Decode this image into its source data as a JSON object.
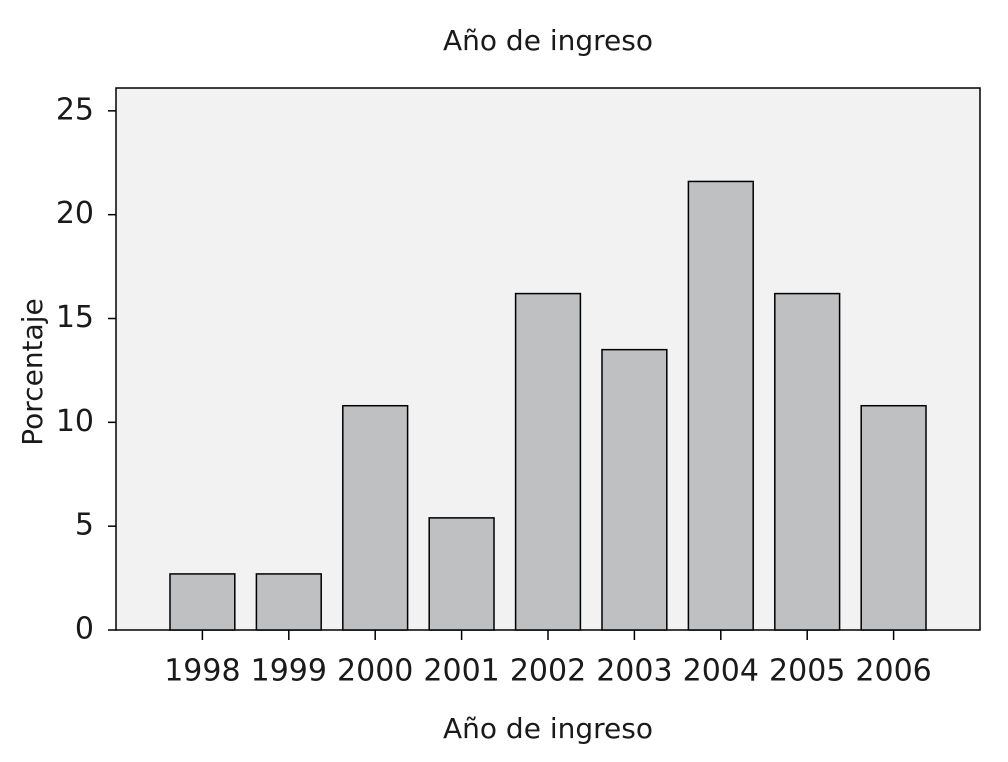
{
  "chart_data": {
    "type": "bar",
    "title": "Año de ingreso",
    "x_label": "Año de ingreso",
    "y_label": "Porcentaje",
    "categories": [
      "1998",
      "1999",
      "2000",
      "2001",
      "2002",
      "2003",
      "2004",
      "2005",
      "2006"
    ],
    "values": [
      2.7,
      2.7,
      10.8,
      5.4,
      16.2,
      13.5,
      21.6,
      16.2,
      10.8
    ],
    "color": "#bfc0c2",
    "ylim": [
      0,
      26.1
    ],
    "yticks": [
      0,
      5,
      10,
      15,
      20,
      25
    ],
    "grid": false
  }
}
